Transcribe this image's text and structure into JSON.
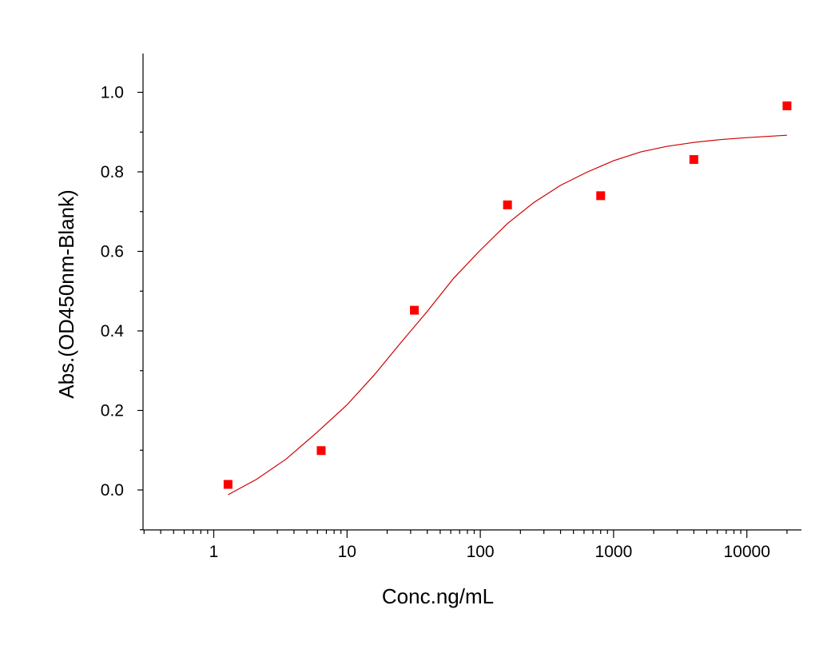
{
  "chart_data": {
    "type": "scatter",
    "title": "",
    "xlabel": "Conc.ng/mL",
    "ylabel": "Abs.(OD450nm-Blank)",
    "xscale": "log",
    "xlim": [
      0.3,
      25000
    ],
    "ylim": [
      -0.1,
      1.1
    ],
    "x_ticks": [
      1,
      10,
      100,
      1000,
      10000
    ],
    "x_tick_labels": [
      "1",
      "10",
      "100",
      "1000",
      "10000"
    ],
    "y_ticks": [
      0.0,
      0.2,
      0.4,
      0.6,
      0.8,
      1.0
    ],
    "y_tick_labels": [
      "0.0",
      "0.2",
      "0.4",
      "0.6",
      "0.8",
      "1.0"
    ],
    "grid": false,
    "series": [
      {
        "kind": "points",
        "marker": "square",
        "color": "#ff0000",
        "x": [
          1.28,
          6.4,
          32,
          160,
          800,
          4000,
          20000
        ],
        "y": [
          0.014,
          0.099,
          0.452,
          0.717,
          0.74,
          0.831,
          0.966
        ]
      },
      {
        "kind": "fitted-curve",
        "color": "#cc0000",
        "x": [
          1.28,
          2.1,
          3.5,
          6,
          10,
          16,
          25,
          40,
          63,
          100,
          160,
          250,
          400,
          630,
          1000,
          1600,
          2500,
          4000,
          6300,
          10000,
          20000
        ],
        "y": [
          -0.012,
          0.027,
          0.078,
          0.146,
          0.214,
          0.289,
          0.368,
          0.449,
          0.532,
          0.603,
          0.67,
          0.722,
          0.766,
          0.799,
          0.828,
          0.85,
          0.864,
          0.874,
          0.881,
          0.886,
          0.892
        ]
      }
    ]
  }
}
